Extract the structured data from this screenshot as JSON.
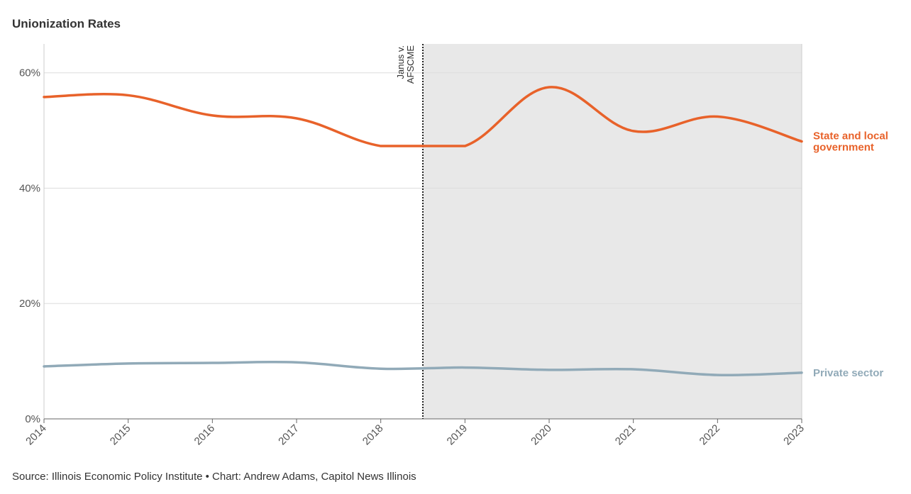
{
  "chart_data": {
    "type": "line",
    "title": "Unionization Rates",
    "x": [
      2014,
      2015,
      2016,
      2017,
      2018,
      2019,
      2020,
      2021,
      2022,
      2023
    ],
    "series": [
      {
        "name": "State and local government",
        "name_lines": [
          "State and local",
          "government"
        ],
        "color": "#e8622a",
        "values": [
          55.8,
          56.1,
          52.6,
          52.1,
          47.3,
          47.3,
          57.5,
          49.9,
          52.4,
          48.1
        ]
      },
      {
        "name": "Private sector",
        "name_lines": [
          "Private sector"
        ],
        "color": "#91aab8",
        "values": [
          9.1,
          9.6,
          9.7,
          9.8,
          8.7,
          8.9,
          8.5,
          8.6,
          7.6,
          8.0
        ]
      }
    ],
    "ylim": [
      0,
      65
    ],
    "yticks": [
      0,
      20,
      40,
      60
    ],
    "ytick_labels": [
      "0%",
      "20%",
      "40%",
      "60%"
    ],
    "xtick_labels": [
      "2014",
      "2015",
      "2016",
      "2017",
      "2018",
      "2019",
      "2020",
      "2021",
      "2022",
      "2023"
    ],
    "grid": true,
    "shaded_region": {
      "x_start": 2018.5,
      "x_end": 2023,
      "color": "#e8e8e8"
    },
    "annotation": {
      "x": 2018.5,
      "lines": [
        "Janus v.",
        "AFSCME"
      ]
    },
    "source": "Source: Illinois Economic Policy Institute • Chart: Andrew Adams, Capitol News Illinois"
  }
}
